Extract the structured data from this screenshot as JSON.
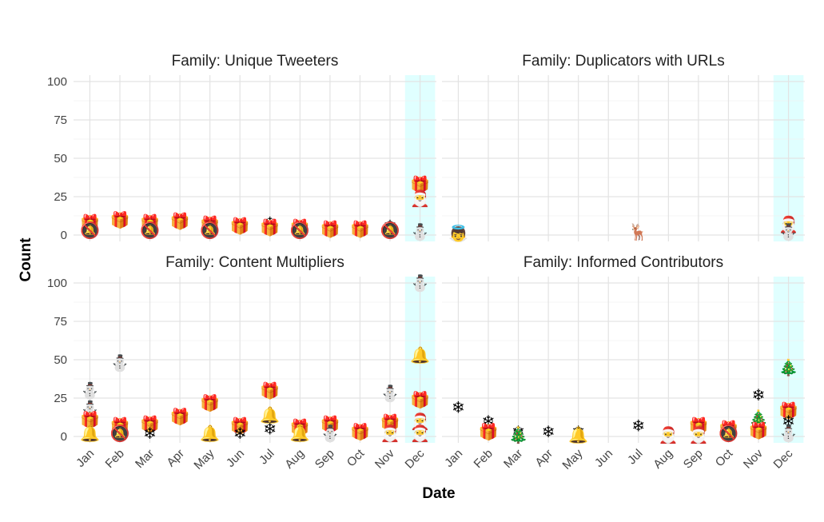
{
  "chart_data": {
    "type": "scatter",
    "xlabel": "Date",
    "ylabel": "Count",
    "ylim": [
      0,
      100
    ],
    "yticks": [
      0,
      25,
      50,
      75,
      100
    ],
    "months": [
      "Jan",
      "Feb",
      "Mar",
      "Apr",
      "May",
      "Jun",
      "Jul",
      "Aug",
      "Sep",
      "Oct",
      "Nov",
      "Dec"
    ],
    "highlight_month": "Dec",
    "highlight_color": "#e0ffff",
    "icons": {
      "gift": "🎁",
      "bell": "🔔",
      "snowman": "⛄",
      "snowflake": "❄",
      "tree": "🎄",
      "santa": "🎅",
      "reindeer": "🦌",
      "angel": "👼",
      "no-bell": "🔕",
      "christmas-star": "⭐"
    },
    "panels": [
      {
        "title": "Family: Unique Tweeters",
        "points": [
          {
            "month": "Jan",
            "y": 8,
            "icon": "gift"
          },
          {
            "month": "Jan",
            "y": 3,
            "icon": "no-bell"
          },
          {
            "month": "Feb",
            "y": 10,
            "icon": "gift"
          },
          {
            "month": "Mar",
            "y": 8,
            "icon": "gift"
          },
          {
            "month": "Mar",
            "y": 3,
            "icon": "no-bell"
          },
          {
            "month": "Apr",
            "y": 9,
            "icon": "gift"
          },
          {
            "month": "May",
            "y": 7,
            "icon": "gift"
          },
          {
            "month": "May",
            "y": 3,
            "icon": "no-bell"
          },
          {
            "month": "Jun",
            "y": 6,
            "icon": "gift"
          },
          {
            "month": "Jul",
            "y": 8,
            "icon": "snowflake"
          },
          {
            "month": "Jul",
            "y": 5,
            "icon": "gift"
          },
          {
            "month": "Aug",
            "y": 5,
            "icon": "gift"
          },
          {
            "month": "Aug",
            "y": 3,
            "icon": "no-bell"
          },
          {
            "month": "Sep",
            "y": 4,
            "icon": "gift"
          },
          {
            "month": "Oct",
            "y": 4,
            "icon": "gift"
          },
          {
            "month": "Nov",
            "y": 6,
            "icon": "snowflake"
          },
          {
            "month": "Nov",
            "y": 3,
            "icon": "no-bell"
          },
          {
            "month": "Dec",
            "y": 33,
            "icon": "gift"
          },
          {
            "month": "Dec",
            "y": 24,
            "icon": "santa"
          },
          {
            "month": "Dec",
            "y": 2,
            "icon": "snowman"
          }
        ]
      },
      {
        "title": "Family: Duplicators with URLs",
        "points": [
          {
            "month": "Jan",
            "y": 1,
            "icon": "angel"
          },
          {
            "month": "Jul",
            "y": 2,
            "icon": "reindeer"
          },
          {
            "month": "Dec",
            "y": 7,
            "icon": "santa"
          },
          {
            "month": "Dec",
            "y": 2,
            "icon": "snowman"
          }
        ]
      },
      {
        "title": "Family: Content Multipliers",
        "points": [
          {
            "month": "Jan",
            "y": 30,
            "icon": "snowman"
          },
          {
            "month": "Jan",
            "y": 18,
            "icon": "snowman"
          },
          {
            "month": "Jan",
            "y": 11,
            "icon": "gift"
          },
          {
            "month": "Jan",
            "y": 2,
            "icon": "bell"
          },
          {
            "month": "Feb",
            "y": 48,
            "icon": "snowman"
          },
          {
            "month": "Feb",
            "y": 7,
            "icon": "gift"
          },
          {
            "month": "Feb",
            "y": 2,
            "icon": "no-bell"
          },
          {
            "month": "Mar",
            "y": 8,
            "icon": "gift"
          },
          {
            "month": "Mar",
            "y": 2,
            "icon": "snowflake"
          },
          {
            "month": "Apr",
            "y": 13,
            "icon": "gift"
          },
          {
            "month": "May",
            "y": 22,
            "icon": "gift"
          },
          {
            "month": "May",
            "y": 2,
            "icon": "bell"
          },
          {
            "month": "Jun",
            "y": 7,
            "icon": "gift"
          },
          {
            "month": "Jun",
            "y": 2,
            "icon": "snowflake"
          },
          {
            "month": "Jul",
            "y": 30,
            "icon": "gift"
          },
          {
            "month": "Jul",
            "y": 14,
            "icon": "bell"
          },
          {
            "month": "Jul",
            "y": 5,
            "icon": "snowflake"
          },
          {
            "month": "Aug",
            "y": 6,
            "icon": "gift"
          },
          {
            "month": "Aug",
            "y": 2,
            "icon": "bell"
          },
          {
            "month": "Sep",
            "y": 8,
            "icon": "gift"
          },
          {
            "month": "Sep",
            "y": 2,
            "icon": "snowman"
          },
          {
            "month": "Oct",
            "y": 3,
            "icon": "gift"
          },
          {
            "month": "Nov",
            "y": 28,
            "icon": "snowman"
          },
          {
            "month": "Nov",
            "y": 9,
            "icon": "gift"
          },
          {
            "month": "Nov",
            "y": 2,
            "icon": "santa"
          },
          {
            "month": "Dec",
            "y": 100,
            "icon": "snowman"
          },
          {
            "month": "Dec",
            "y": 53,
            "icon": "bell"
          },
          {
            "month": "Dec",
            "y": 24,
            "icon": "gift"
          },
          {
            "month": "Dec",
            "y": 10,
            "icon": "santa"
          },
          {
            "month": "Dec",
            "y": 2,
            "icon": "santa"
          }
        ]
      },
      {
        "title": "Family: Informed Contributors",
        "points": [
          {
            "month": "Jan",
            "y": 19,
            "icon": "snowflake"
          },
          {
            "month": "Feb",
            "y": 10,
            "icon": "snowflake"
          },
          {
            "month": "Feb",
            "y": 3,
            "icon": "gift"
          },
          {
            "month": "Mar",
            "y": 3,
            "icon": "snowflake"
          },
          {
            "month": "Mar",
            "y": 1,
            "icon": "tree"
          },
          {
            "month": "Apr",
            "y": 3,
            "icon": "snowflake"
          },
          {
            "month": "May",
            "y": 3,
            "icon": "snowflake"
          },
          {
            "month": "May",
            "y": 1,
            "icon": "bell"
          },
          {
            "month": "Jul",
            "y": 7,
            "icon": "snowflake"
          },
          {
            "month": "Aug",
            "y": 1,
            "icon": "santa"
          },
          {
            "month": "Sep",
            "y": 7,
            "icon": "gift"
          },
          {
            "month": "Sep",
            "y": 1,
            "icon": "santa"
          },
          {
            "month": "Oct",
            "y": 5,
            "icon": "gift"
          },
          {
            "month": "Oct",
            "y": 2,
            "icon": "no-bell"
          },
          {
            "month": "Nov",
            "y": 27,
            "icon": "snowflake"
          },
          {
            "month": "Nov",
            "y": 12,
            "icon": "tree"
          },
          {
            "month": "Nov",
            "y": 4,
            "icon": "gift"
          },
          {
            "month": "Dec",
            "y": 45,
            "icon": "tree"
          },
          {
            "month": "Dec",
            "y": 17,
            "icon": "gift"
          },
          {
            "month": "Dec",
            "y": 10,
            "icon": "snowflake"
          },
          {
            "month": "Dec",
            "y": 2,
            "icon": "snowman"
          }
        ]
      }
    ]
  }
}
